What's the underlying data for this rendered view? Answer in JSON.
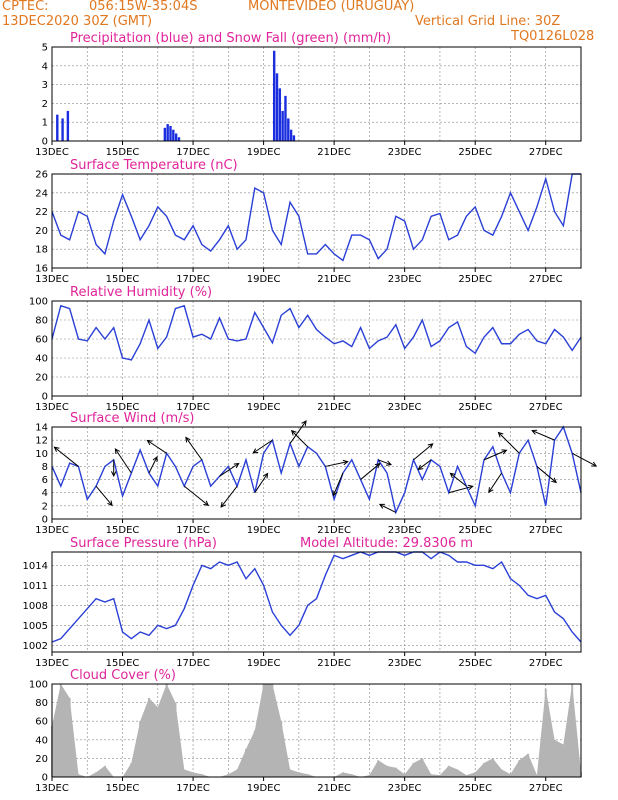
{
  "header": {
    "line1_left": "CPTEC:",
    "line1_coords": "056:15W-35:04S",
    "line1_location": "MONTEVIDEO (URUGUAY)",
    "line2_date": "13DEC2020 30Z (GMT)",
    "line2_grid": "Vertical Grid Line: 30Z",
    "line3_code": "TQ0126L028"
  },
  "colors": {
    "header": "#e07820",
    "title": "#e0249a",
    "line": "#2a3fd6",
    "precip": "#1a2ee0",
    "snow": "#2aa02a",
    "cloud": "#b4b4b4",
    "wind_arrow": "#000000"
  },
  "x_labels": [
    "13DEC",
    "15DEC",
    "17DEC",
    "19DEC",
    "21DEC",
    "23DEC",
    "25DEC",
    "27DEC"
  ],
  "chart_data": [
    {
      "type": "bar",
      "title": "Precipitation (blue) and Snow Fall (green) (mm/h)",
      "ylim": [
        0,
        5
      ],
      "yticks": [
        "0",
        "1",
        "2",
        "3",
        "4",
        "5"
      ],
      "series": [
        {
          "name": "Precipitation",
          "x": [
            13.15,
            13.3,
            13.45,
            16.2,
            16.28,
            16.36,
            16.44,
            16.52,
            16.6,
            19.3,
            19.38,
            19.46,
            19.54,
            19.62,
            19.7,
            19.78,
            19.86
          ],
          "values": [
            1.4,
            1.2,
            1.6,
            0.7,
            0.9,
            0.8,
            0.6,
            0.4,
            0.2,
            4.8,
            3.6,
            2.8,
            1.6,
            2.4,
            1.2,
            0.6,
            0.3
          ]
        },
        {
          "name": "Snow Fall",
          "x": [],
          "values": []
        }
      ]
    },
    {
      "type": "line",
      "title": "Surface Temperature (nC)",
      "ylim": [
        16,
        26
      ],
      "yticks": [
        "16",
        "18",
        "20",
        "22",
        "24",
        "26"
      ],
      "x": [
        13,
        13.25,
        13.5,
        13.75,
        14,
        14.25,
        14.5,
        14.75,
        15,
        15.25,
        15.5,
        15.75,
        16,
        16.25,
        16.5,
        16.75,
        17,
        17.25,
        17.5,
        17.75,
        18,
        18.25,
        18.5,
        18.75,
        19,
        19.25,
        19.5,
        19.75,
        20,
        20.25,
        20.5,
        20.75,
        21,
        21.25,
        21.5,
        21.75,
        22,
        22.25,
        22.5,
        22.75,
        23,
        23.25,
        23.5,
        23.75,
        24,
        24.25,
        24.5,
        24.75,
        25,
        25.25,
        25.5,
        25.75,
        26,
        26.25,
        26.5,
        26.75,
        27,
        27.25,
        27.5,
        27.75,
        28
      ],
      "values": [
        22,
        19.5,
        19,
        22,
        21.5,
        18.5,
        17.5,
        21,
        23.8,
        21.5,
        19,
        20.5,
        22.5,
        21.5,
        19.5,
        19,
        20.5,
        18.5,
        17.8,
        19,
        20.5,
        18,
        19,
        24.5,
        24,
        20,
        18.5,
        23,
        21.5,
        17.5,
        17.5,
        18.5,
        17.5,
        16.8,
        19.5,
        19.5,
        19,
        17,
        18,
        21.5,
        21,
        18,
        19,
        21.5,
        21.8,
        19,
        19.5,
        21.5,
        22.5,
        20,
        19.5,
        21.5,
        24,
        22,
        20,
        22.5,
        25.5,
        22,
        20.5,
        26,
        26
      ]
    },
    {
      "type": "line",
      "title": "Relative Humidity (%)",
      "ylim": [
        0,
        100
      ],
      "yticks": [
        "0",
        "20",
        "40",
        "60",
        "80",
        "100"
      ],
      "x": [
        13,
        13.25,
        13.5,
        13.75,
        14,
        14.25,
        14.5,
        14.75,
        15,
        15.25,
        15.5,
        15.75,
        16,
        16.25,
        16.5,
        16.75,
        17,
        17.25,
        17.5,
        17.75,
        18,
        18.25,
        18.5,
        18.75,
        19,
        19.25,
        19.5,
        19.75,
        20,
        20.25,
        20.5,
        20.75,
        21,
        21.25,
        21.5,
        21.75,
        22,
        22.25,
        22.5,
        22.75,
        23,
        23.25,
        23.5,
        23.75,
        24,
        24.25,
        24.5,
        24.75,
        25,
        25.25,
        25.5,
        25.75,
        26,
        26.25,
        26.5,
        26.75,
        27,
        27.25,
        27.5,
        27.75,
        28
      ],
      "values": [
        60,
        95,
        92,
        60,
        58,
        72,
        60,
        72,
        40,
        38,
        55,
        80,
        50,
        62,
        92,
        95,
        62,
        65,
        60,
        82,
        60,
        58,
        60,
        88,
        72,
        56,
        85,
        92,
        72,
        85,
        70,
        62,
        55,
        58,
        52,
        72,
        50,
        58,
        62,
        75,
        50,
        62,
        80,
        52,
        58,
        72,
        78,
        52,
        45,
        62,
        72,
        55,
        55,
        65,
        70,
        58,
        55,
        70,
        62,
        48,
        62
      ]
    },
    {
      "type": "line",
      "title": "Surface Wind (m/s)",
      "ylim": [
        0,
        14
      ],
      "yticks": [
        "0",
        "2",
        "4",
        "6",
        "8",
        "10",
        "12",
        "14"
      ],
      "x": [
        13,
        13.25,
        13.5,
        13.75,
        14,
        14.25,
        14.5,
        14.75,
        15,
        15.25,
        15.5,
        15.75,
        16,
        16.25,
        16.5,
        16.75,
        17,
        17.25,
        17.5,
        17.75,
        18,
        18.25,
        18.5,
        18.75,
        19,
        19.25,
        19.5,
        19.75,
        20,
        20.25,
        20.5,
        20.75,
        21,
        21.25,
        21.5,
        21.75,
        22,
        22.25,
        22.5,
        22.75,
        23,
        23.25,
        23.5,
        23.75,
        24,
        24.25,
        24.5,
        24.75,
        25,
        25.25,
        25.5,
        25.75,
        26,
        26.25,
        26.5,
        26.75,
        27,
        27.25,
        27.5,
        27.75,
        28
      ],
      "values": [
        8,
        5,
        8.5,
        8,
        3,
        5,
        8,
        9,
        3.5,
        7,
        10.5,
        7,
        5,
        10,
        8,
        5,
        8,
        9,
        5,
        6.5,
        8,
        5,
        9,
        4,
        10,
        12,
        7,
        11.5,
        8,
        11,
        10,
        8,
        3,
        7,
        9,
        6,
        3,
        9,
        7,
        1,
        4,
        9,
        6,
        9,
        8,
        4,
        8,
        5,
        2,
        9,
        11,
        7,
        4,
        10,
        12,
        8,
        2,
        12,
        14,
        10,
        4
      ]
    },
    {
      "type": "line",
      "title": "Surface Pressure (hPa)",
      "annotation": "Model Altitude: 29.8306 m",
      "ylim": [
        1001,
        1016
      ],
      "yticks": [
        "1002",
        "1005",
        "1008",
        "1011",
        "1014"
      ],
      "x": [
        13,
        13.25,
        13.5,
        13.75,
        14,
        14.25,
        14.5,
        14.75,
        15,
        15.25,
        15.5,
        15.75,
        16,
        16.25,
        16.5,
        16.75,
        17,
        17.25,
        17.5,
        17.75,
        18,
        18.25,
        18.5,
        18.75,
        19,
        19.25,
        19.5,
        19.75,
        20,
        20.25,
        20.5,
        20.75,
        21,
        21.25,
        21.5,
        21.75,
        22,
        22.25,
        22.5,
        22.75,
        23,
        23.25,
        23.5,
        23.75,
        24,
        24.25,
        24.5,
        24.75,
        25,
        25.25,
        25.5,
        25.75,
        26,
        26.25,
        26.5,
        26.75,
        27,
        27.25,
        27.5,
        27.75,
        28
      ],
      "values": [
        1002.5,
        1003,
        1004.5,
        1006,
        1007.5,
        1009,
        1008.5,
        1009,
        1004,
        1003,
        1004,
        1003.5,
        1005,
        1004.5,
        1005,
        1007.5,
        1011,
        1014,
        1013.5,
        1014.5,
        1014,
        1014.5,
        1012,
        1013.5,
        1011,
        1007,
        1005,
        1003.5,
        1005,
        1008,
        1009,
        1012.5,
        1015.5,
        1015,
        1015.5,
        1016,
        1015.5,
        1016,
        1016,
        1016,
        1015.5,
        1016,
        1016,
        1015,
        1016,
        1015.5,
        1014.5,
        1014.5,
        1014,
        1014,
        1013.5,
        1014.5,
        1012,
        1011,
        1009.5,
        1009,
        1009.5,
        1007,
        1006,
        1004,
        1002.5
      ]
    },
    {
      "type": "bar",
      "title": "Cloud Cover (%)",
      "ylim": [
        0,
        100
      ],
      "yticks": [
        "0",
        "20",
        "40",
        "60",
        "80",
        "100"
      ],
      "x": [
        13,
        13.25,
        13.5,
        13.75,
        14,
        14.25,
        14.5,
        14.75,
        15,
        15.25,
        15.5,
        15.75,
        16,
        16.25,
        16.5,
        16.75,
        17,
        17.25,
        17.5,
        17.75,
        18,
        18.25,
        18.5,
        18.75,
        19,
        19.25,
        19.5,
        19.75,
        20,
        20.25,
        20.5,
        20.75,
        21,
        21.25,
        21.5,
        21.75,
        22,
        22.25,
        22.5,
        22.75,
        23,
        23.25,
        23.5,
        23.75,
        24,
        24.25,
        24.5,
        24.75,
        25,
        25.25,
        25.5,
        25.75,
        26,
        26.25,
        26.5,
        26.75,
        27,
        27.25,
        27.5,
        27.75,
        28
      ],
      "values": [
        55,
        100,
        85,
        3,
        0,
        5,
        12,
        0,
        0,
        15,
        60,
        85,
        75,
        100,
        80,
        8,
        5,
        3,
        0,
        0,
        3,
        8,
        30,
        50,
        100,
        100,
        60,
        8,
        5,
        3,
        0,
        0,
        0,
        5,
        3,
        0,
        2,
        18,
        12,
        10,
        3,
        15,
        20,
        3,
        2,
        12,
        8,
        2,
        5,
        15,
        20,
        8,
        3,
        18,
        25,
        2,
        95,
        40,
        35,
        100,
        5
      ]
    }
  ],
  "wind_vectors": {
    "x": [
      13.75,
      14.25,
      14.75,
      15.25,
      15.75,
      16.25,
      16.75,
      17.25,
      17.75,
      18.25,
      18.75,
      19.25,
      19.75,
      20.25,
      20.75,
      21.25,
      21.75,
      22.25,
      22.75,
      23.25,
      23.75,
      24.25,
      24.75,
      25.25,
      25.75,
      26.25,
      26.75,
      27.25,
      27.75
    ],
    "u": [
      -1.5,
      1,
      0,
      -1,
      0.5,
      -1.2,
      1.5,
      -1,
      1.2,
      -1,
      0.8,
      -1.2,
      1,
      -1,
      1.4,
      -0.6,
      1.2,
      0.8,
      -1,
      1.2,
      -0.8,
      1.5,
      -1,
      1.4,
      -0.8,
      -1.3,
      1.2,
      -1.4,
      1.5
    ],
    "v": [
      1.2,
      -1.2,
      -1,
      1.5,
      1,
      0.8,
      -1.2,
      1.4,
      0.8,
      -1.3,
      1.2,
      -0.8,
      1.4,
      1,
      0.3,
      -1.4,
      1,
      -0.3,
      0.5,
      1,
      -0.6,
      0.4,
      0.8,
      0.6,
      -1.2,
      1.3,
      -1,
      0.6,
      -0.8
    ]
  }
}
